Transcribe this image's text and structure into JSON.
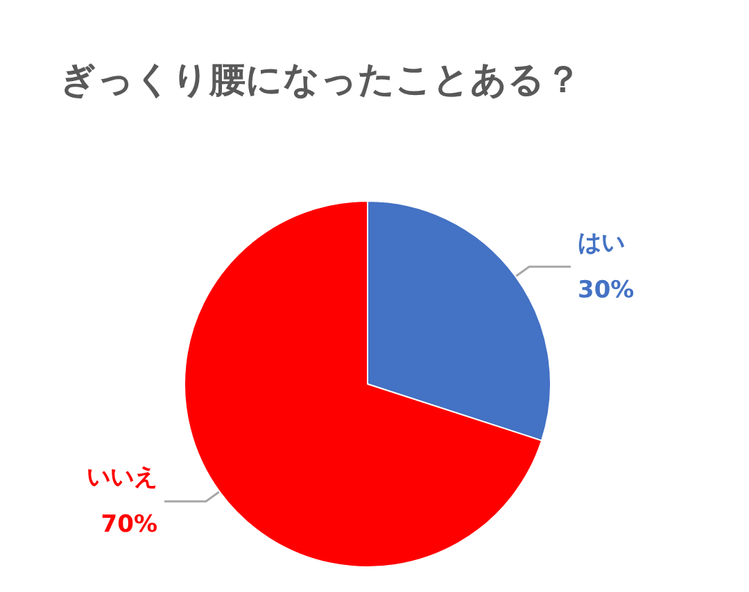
{
  "chart_data": {
    "type": "pie",
    "title": "ぎっくり腰になったことある？",
    "categories": [
      "はい",
      "いいえ"
    ],
    "values": [
      30,
      70
    ],
    "colors": [
      "#4472c4",
      "#ff0000"
    ],
    "value_labels": [
      "30%",
      "70%"
    ],
    "legend": false
  }
}
